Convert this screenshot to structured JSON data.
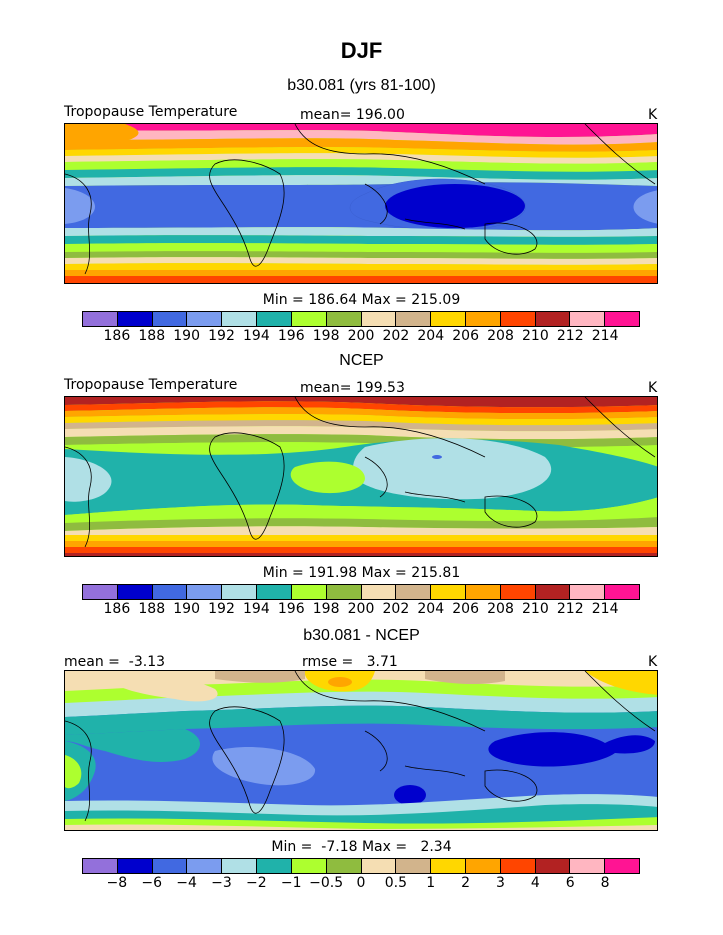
{
  "figure": {
    "title": "DJF",
    "panels": [
      {
        "subtitle": "b30.081 (yrs 81-100)",
        "left_label": "Tropopause Temperature",
        "center_label": "mean= 196.00",
        "right_label": "K",
        "stats_line": "Min = 186.64 Max = 215.09",
        "min": 186.64,
        "max": 215.09,
        "mean": 196.0,
        "colorbar_ticks": [
          "186",
          "188",
          "190",
          "192",
          "194",
          "196",
          "198",
          "200",
          "202",
          "204",
          "206",
          "208",
          "210",
          "212",
          "214"
        ]
      },
      {
        "subtitle": "NCEP",
        "left_label": "Tropopause Temperature",
        "center_label": "mean= 199.53",
        "right_label": "K",
        "stats_line": "Min = 191.98 Max = 215.81",
        "min": 191.98,
        "max": 215.81,
        "mean": 199.53,
        "colorbar_ticks": [
          "186",
          "188",
          "190",
          "192",
          "194",
          "196",
          "198",
          "200",
          "202",
          "204",
          "206",
          "208",
          "210",
          "212",
          "214"
        ]
      },
      {
        "subtitle": "b30.081 - NCEP",
        "left_label": "mean =  -3.13",
        "center_label": "rmse =   3.71",
        "right_label": "K",
        "stats_line": "Min =  -7.18 Max =   2.34",
        "min": -7.18,
        "max": 2.34,
        "mean": -3.13,
        "rmse": 3.71,
        "colorbar_ticks": [
          "−8",
          "−6",
          "−4",
          "−3",
          "−2",
          "−1",
          "−0.5",
          "0",
          "0.5",
          "1",
          "2",
          "3",
          "4",
          "6",
          "8"
        ]
      }
    ],
    "palette": [
      "#9370db",
      "#0000cd",
      "#4169e1",
      "#7b9cef",
      "#b0e0e6",
      "#20b2aa",
      "#adff2f",
      "#8fbc3f",
      "#f5deb3",
      "#d2b48c",
      "#ffd700",
      "#ffa500",
      "#ff4500",
      "#b22222",
      "#ffb6c1",
      "#ff1493"
    ]
  }
}
